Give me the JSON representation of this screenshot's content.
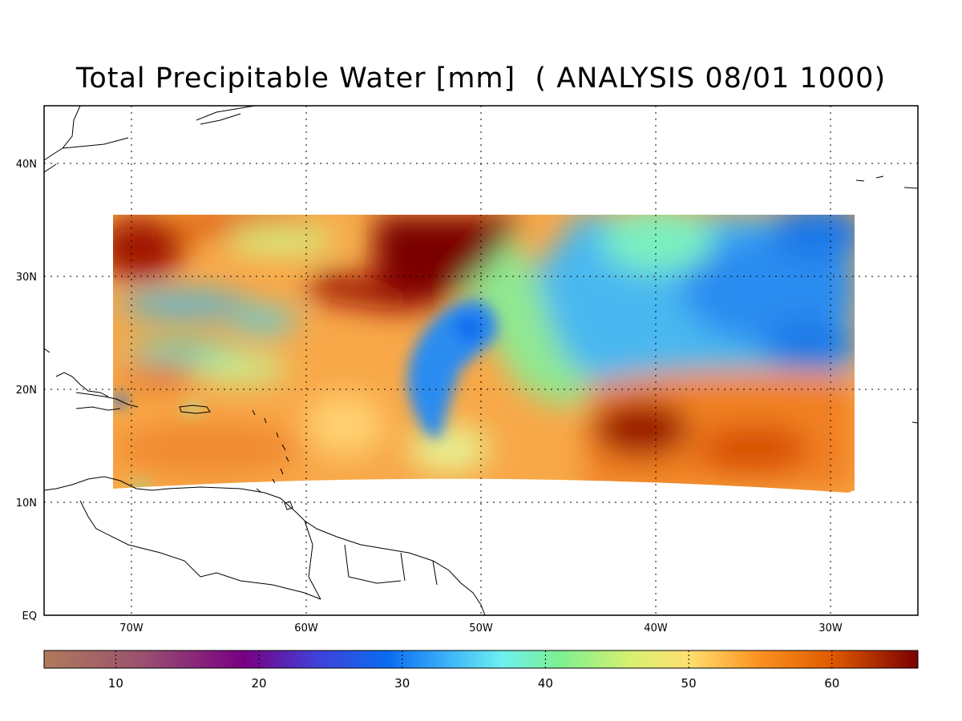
{
  "title": "Total Precipitable Water [mm]  ( ANALYSIS 08/01 1000)",
  "map": {
    "projection": "Mercator",
    "lon_range": [
      -75,
      -25
    ],
    "lat_range": [
      0,
      45
    ],
    "gridlines": "dotted",
    "lat_labels": [
      "40N",
      "30N",
      "20N",
      "10N",
      "EQ"
    ],
    "lon_labels": [
      "70W",
      "60W",
      "50W",
      "40W",
      "30W"
    ]
  },
  "colorbar": {
    "range": [
      5,
      66
    ],
    "tick_labels": [
      "10",
      "20",
      "30",
      "40",
      "50",
      "60"
    ],
    "stops": [
      {
        "v": 5,
        "color": "#b07a5a"
      },
      {
        "v": 12,
        "color": "#9a4f70"
      },
      {
        "v": 19,
        "color": "#780082"
      },
      {
        "v": 24,
        "color": "#4040d8"
      },
      {
        "v": 29,
        "color": "#0a6cf0"
      },
      {
        "v": 33,
        "color": "#3ab0f8"
      },
      {
        "v": 37,
        "color": "#6ef0f0"
      },
      {
        "v": 41,
        "color": "#7cf090"
      },
      {
        "v": 46,
        "color": "#d8f070"
      },
      {
        "v": 50,
        "color": "#ffe070"
      },
      {
        "v": 55,
        "color": "#fa9020"
      },
      {
        "v": 60,
        "color": "#e05a00"
      },
      {
        "v": 66,
        "color": "#7a0000"
      }
    ]
  },
  "field_description_colors": {
    "very_high": "#7a0000",
    "high": "#e05a00",
    "moderate": "#ffd060",
    "mid": "#7cf090",
    "low": "#3ab0f8",
    "very_low": "#0a6cf0"
  }
}
